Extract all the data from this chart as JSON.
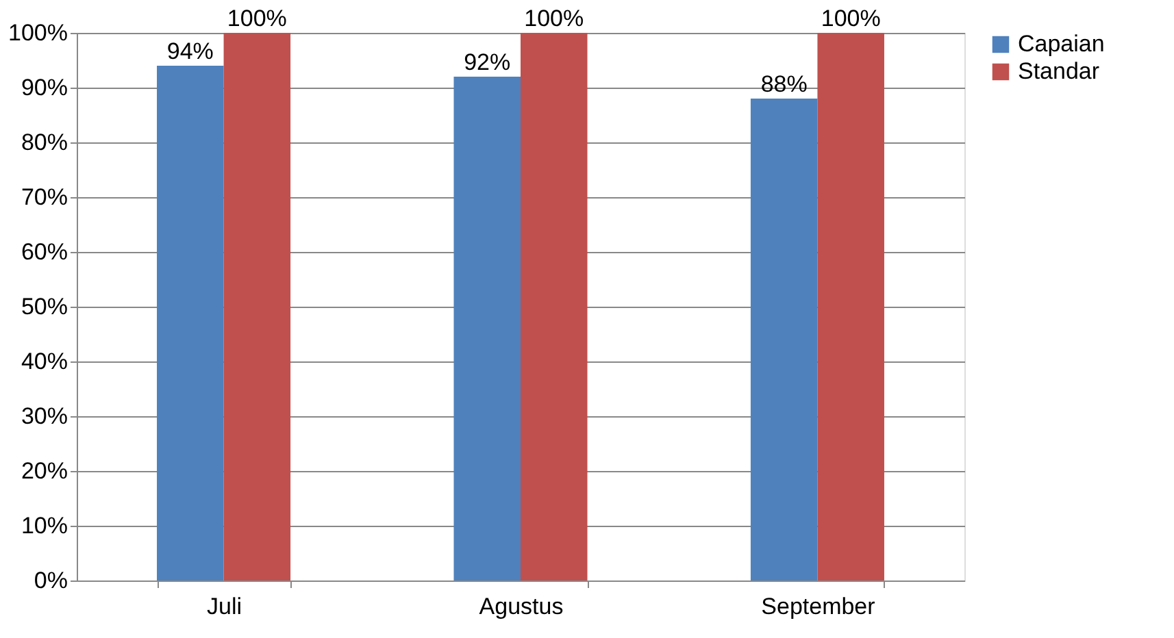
{
  "chart_data": {
    "type": "bar",
    "categories": [
      "Juli",
      "Agustus",
      "September"
    ],
    "series": [
      {
        "name": "Capaian",
        "color": "#4f81bd",
        "values": [
          94,
          92,
          88
        ],
        "value_labels": [
          "94%",
          "92%",
          "88%"
        ]
      },
      {
        "name": "Standar",
        "color": "#c0504d",
        "values": [
          100,
          100,
          100
        ],
        "value_labels": [
          "100%",
          "100%",
          "100%"
        ]
      }
    ],
    "ylim": [
      0,
      100
    ],
    "yticks": [
      {
        "value": 0,
        "label": "0%"
      },
      {
        "value": 10,
        "label": "10%"
      },
      {
        "value": 20,
        "label": "20%"
      },
      {
        "value": 30,
        "label": "30%"
      },
      {
        "value": 40,
        "label": "40%"
      },
      {
        "value": 50,
        "label": "50%"
      },
      {
        "value": 60,
        "label": "60%"
      },
      {
        "value": 70,
        "label": "70%"
      },
      {
        "value": 80,
        "label": "80%"
      },
      {
        "value": 90,
        "label": "90%"
      },
      {
        "value": 100,
        "label": "100%"
      }
    ],
    "grid": "y",
    "legend": "right"
  }
}
